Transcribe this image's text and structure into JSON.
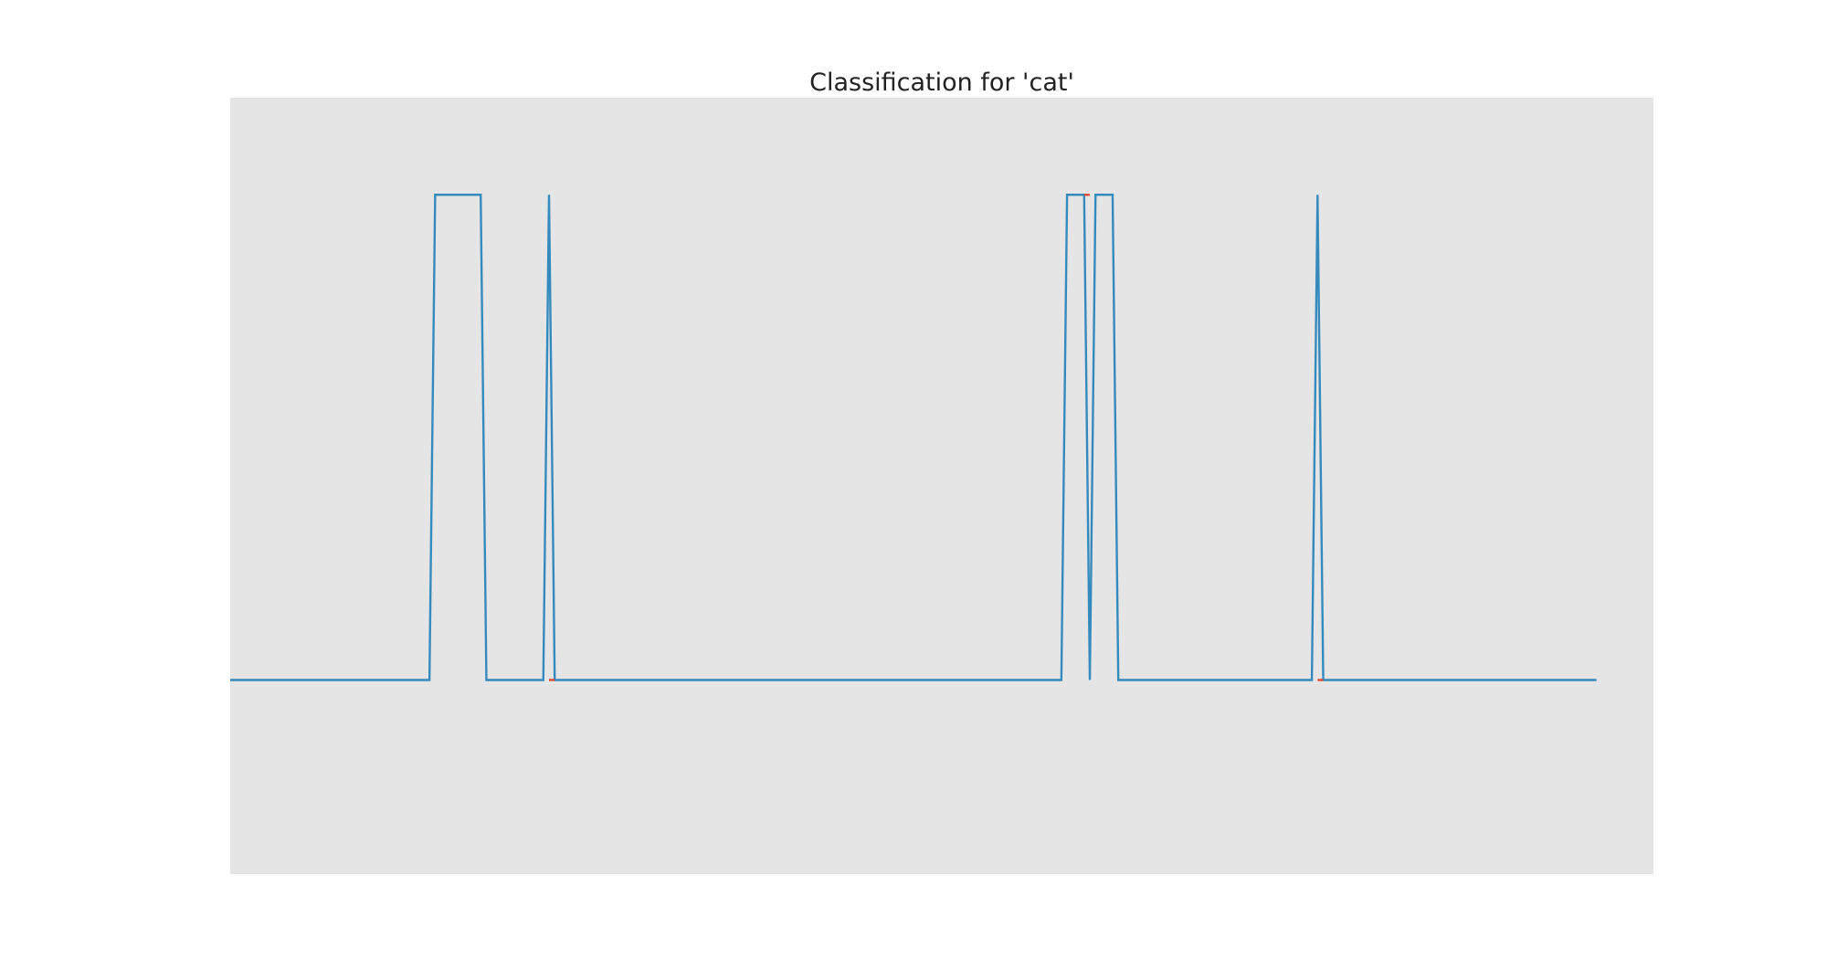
{
  "chart_data": {
    "type": "line",
    "title": "Classification for 'cat'",
    "xlabel": "",
    "ylabel": "",
    "grid": false,
    "background_color": "#e5e5e5",
    "xlim": [
      0,
      250
    ],
    "ylim": [
      -0.4,
      1.2
    ],
    "series": [
      {
        "color": "#348abd",
        "points": [
          [
            0,
            0
          ],
          [
            35,
            0
          ],
          [
            36,
            1
          ],
          [
            44,
            1
          ],
          [
            45,
            0
          ],
          [
            55,
            0
          ],
          [
            56,
            1
          ],
          [
            57,
            0
          ],
          [
            146,
            0
          ],
          [
            147,
            1
          ],
          [
            150,
            1
          ],
          [
            151,
            0
          ],
          [
            152,
            1
          ],
          [
            155,
            1
          ],
          [
            156,
            0
          ],
          [
            190,
            0
          ],
          [
            191,
            1
          ],
          [
            192,
            0
          ],
          [
            240,
            0
          ]
        ]
      },
      {
        "color": "#e24a33",
        "points": [
          [
            56,
            0
          ],
          [
            57,
            0
          ],
          null,
          [
            150,
            1
          ],
          [
            151,
            1
          ],
          null,
          [
            191,
            0
          ],
          [
            192,
            0
          ]
        ]
      }
    ]
  }
}
